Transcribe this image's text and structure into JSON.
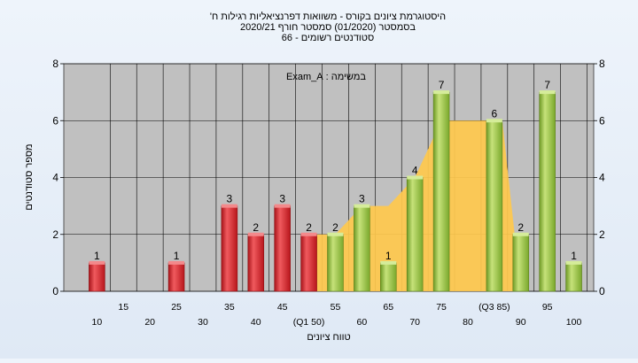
{
  "chart_data": {
    "type": "bar",
    "title_lines": [
      "היסטוגרמת ציונים בקורס - משוואות דפרנציאליות רגילות ח'",
      "בסמסטר  (01/2020)  סמסטר חורף  2020/21",
      "סטודנטים רשומים - 66"
    ],
    "xlabel": "טווח ציונים",
    "ylabel": "מספר סטודנטים",
    "legend_text": "במשימה : Exam_A",
    "ylim": [
      0,
      8
    ],
    "yticks": [
      0,
      2,
      4,
      6,
      8
    ],
    "x_tick_labels": [
      {
        "x": 10,
        "label": "10"
      },
      {
        "x": 15,
        "label": "15"
      },
      {
        "x": 20,
        "label": "20"
      },
      {
        "x": 25,
        "label": "25"
      },
      {
        "x": 30,
        "label": "30"
      },
      {
        "x": 35,
        "label": "35"
      },
      {
        "x": 40,
        "label": "40"
      },
      {
        "x": 45,
        "label": "45"
      },
      {
        "x": 50,
        "label": "(Q1 50)"
      },
      {
        "x": 55,
        "label": "55"
      },
      {
        "x": 60,
        "label": "60"
      },
      {
        "x": 65,
        "label": "65"
      },
      {
        "x": 70,
        "label": "70"
      },
      {
        "x": 75,
        "label": "75"
      },
      {
        "x": 80,
        "label": "80"
      },
      {
        "x": 85,
        "label": "(Q3 85)"
      },
      {
        "x": 90,
        "label": "90"
      },
      {
        "x": 95,
        "label": "95"
      },
      {
        "x": 100,
        "label": "100"
      }
    ],
    "bars": [
      {
        "x": 10,
        "value": 1,
        "color": "#d9262b"
      },
      {
        "x": 25,
        "value": 1,
        "color": "#d9262b"
      },
      {
        "x": 35,
        "value": 3,
        "color": "#d9262b"
      },
      {
        "x": 40,
        "value": 2,
        "color": "#d9262b"
      },
      {
        "x": 45,
        "value": 3,
        "color": "#d9262b"
      },
      {
        "x": 50,
        "value": 2,
        "color": "#d9262b"
      },
      {
        "x": 55,
        "value": 2,
        "color": "#8dbb3c"
      },
      {
        "x": 60,
        "value": 3,
        "color": "#8dbb3c"
      },
      {
        "x": 65,
        "value": 1,
        "color": "#8dbb3c"
      },
      {
        "x": 70,
        "value": 4,
        "color": "#8dbb3c"
      },
      {
        "x": 75,
        "value": 7,
        "color": "#8dbb3c"
      },
      {
        "x": 85,
        "value": 6,
        "color": "#8dbb3c"
      },
      {
        "x": 90,
        "value": 2,
        "color": "#8dbb3c"
      },
      {
        "x": 95,
        "value": 7,
        "color": "#8dbb3c"
      },
      {
        "x": 100,
        "value": 1,
        "color": "#8dbb3c"
      }
    ],
    "interquartile_area": {
      "color": "#ffc94d",
      "points": [
        [
          50,
          2
        ],
        [
          55,
          2
        ],
        [
          60,
          3
        ],
        [
          65,
          3
        ],
        [
          70,
          4
        ],
        [
          75,
          6
        ],
        [
          80,
          6
        ],
        [
          85,
          6
        ],
        [
          86.5,
          6
        ],
        [
          90,
          0
        ],
        [
          50,
          0
        ]
      ]
    },
    "grid": true,
    "plot_background": "#c0c0c0"
  }
}
